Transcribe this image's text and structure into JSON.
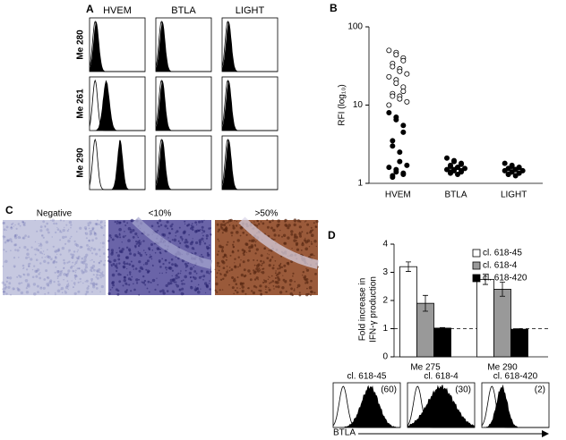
{
  "panel_a": {
    "label": "A",
    "columns": [
      "HVEM",
      "BTLA",
      "LIGHT"
    ],
    "rows": [
      "Me 280",
      "Me 261",
      "Me 290"
    ]
  },
  "panel_c": {
    "label": "C",
    "images": [
      "Negative",
      "<10%",
      ">50%"
    ]
  },
  "panel_d_histograms": {
    "labels": [
      "cl. 618-45",
      "cl. 618-4",
      "cl. 618-420"
    ],
    "counts": [
      "(60)",
      "(30)",
      "(2)"
    ],
    "axis_label": "BTLA"
  },
  "chart_data": [
    {
      "type": "scatter",
      "label": "B",
      "ylabel": "RFI (log₁₀)",
      "categories": [
        "HVEM",
        "BTLA",
        "LIGHT"
      ],
      "log_y": true,
      "ylim": [
        1,
        100
      ],
      "yticks": [
        1,
        10,
        100
      ],
      "series": [
        {
          "category": "HVEM",
          "marker": "open",
          "color": "#000000",
          "values": [
            50,
            47,
            44,
            40,
            37,
            34,
            31,
            29,
            27,
            25,
            23,
            21,
            19,
            17,
            15,
            14,
            13,
            13,
            12,
            11,
            10
          ]
        },
        {
          "category": "HVEM",
          "marker": "filled",
          "color": "#000000",
          "values": [
            8,
            7,
            6.5,
            5.5,
            4.5,
            3.5,
            3,
            2.5,
            1.9,
            1.7,
            1.6,
            1.5,
            1.4,
            1.35,
            1.3,
            1.25,
            1.2
          ]
        },
        {
          "category": "BTLA",
          "marker": "filled",
          "color": "#000000",
          "values": [
            2.1,
            1.95,
            1.9,
            1.8,
            1.75,
            1.7,
            1.65,
            1.6,
            1.6,
            1.55,
            1.5,
            1.5,
            1.45,
            1.45,
            1.4,
            1.4,
            1.35,
            1.3
          ]
        },
        {
          "category": "LIGHT",
          "marker": "filled",
          "color": "#000000",
          "values": [
            1.8,
            1.7,
            1.65,
            1.6,
            1.6,
            1.55,
            1.55,
            1.5,
            1.5,
            1.45,
            1.45,
            1.4,
            1.4,
            1.35,
            1.35,
            1.3,
            1.3,
            1.25
          ]
        }
      ]
    },
    {
      "type": "bar",
      "label": "D",
      "ylabel": [
        "Fold increase in",
        "IFN-γ production"
      ],
      "categories": [
        "Me 275",
        "Me 290"
      ],
      "ylim": [
        0,
        4
      ],
      "yticks": [
        0,
        1,
        2,
        3,
        4
      ],
      "reference_line": 1,
      "series": [
        {
          "name": "cl. 618-45",
          "color": "#ffffff",
          "values": [
            3.2,
            2.75
          ],
          "errors": [
            0.17,
            0.18
          ]
        },
        {
          "name": "cl. 618-4",
          "color": "#999999",
          "values": [
            1.9,
            2.4
          ],
          "errors": [
            0.28,
            0.25
          ]
        },
        {
          "name": "cl. 618-420",
          "color": "#000000",
          "values": [
            1.02,
            0.98
          ],
          "errors": [
            0.02,
            0.02
          ]
        }
      ]
    }
  ]
}
